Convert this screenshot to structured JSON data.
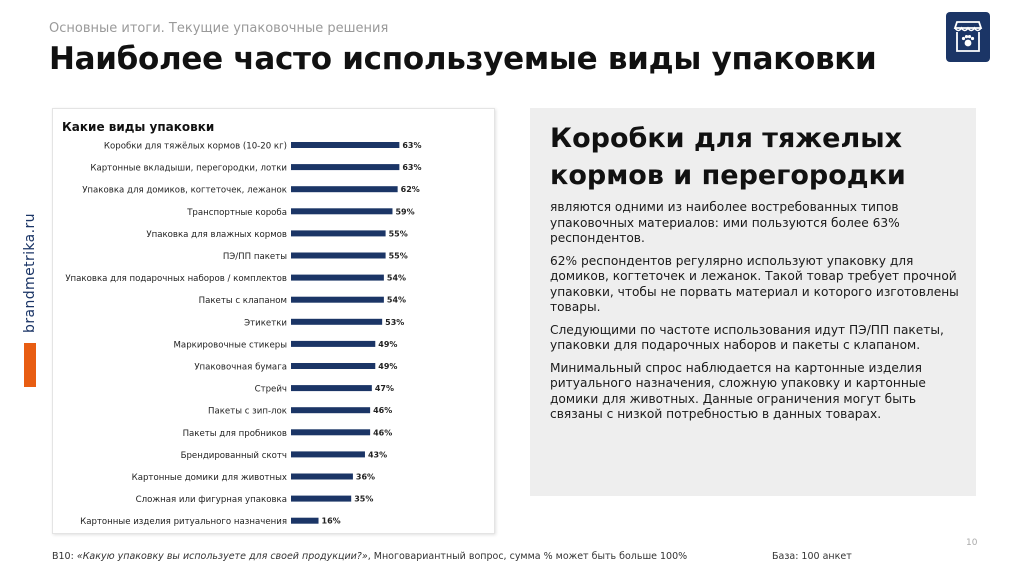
{
  "header": {
    "subtitle": "Основные итоги. Текущие упаковочные решения",
    "title": "Наиболее часто используемые виды упаковки"
  },
  "logo": {
    "icon": "storefront-paw-icon",
    "color": "#1b3566"
  },
  "side_brand": {
    "text": "brandmetrika.ru",
    "accent": "#e85d12"
  },
  "chart_data": {
    "type": "bar",
    "orientation": "horizontal",
    "title": "Какие виды упаковки",
    "categories": [
      "Коробки для тяжёлых кормов (10-20 кг)",
      "Картонные вкладыши, перегородки, лотки",
      "Упаковка для домиков, когтеточек, лежанок",
      "Транспортные короба",
      "Упаковка для влажных кормов",
      "ПЭ/ПП пакеты",
      "Упаковка для подарочных наборов / комплектов",
      "Пакеты с клапаном",
      "Этикетки",
      "Маркировочные стикеры",
      "Упаковочная бумага",
      "Стрейч",
      "Пакеты с зип-лок",
      "Пакеты для пробников",
      "Брендированный скотч",
      "Картонные домики для животных",
      "Сложная или фигурная упаковка",
      "Картонные изделия ритуального назначения"
    ],
    "values": [
      63,
      63,
      62,
      59,
      55,
      55,
      54,
      54,
      53,
      49,
      49,
      47,
      46,
      46,
      43,
      36,
      35,
      16
    ],
    "value_labels": [
      "63%",
      "63%",
      "62%",
      "59%",
      "55%",
      "55%",
      "54%",
      "54%",
      "53%",
      "49%",
      "49%",
      "47%",
      "46%",
      "46%",
      "43%",
      "36%",
      "35%",
      "16%"
    ],
    "unit": "%",
    "xlim": [
      0,
      100
    ],
    "bar_color": "#1b3566",
    "grid": false,
    "legend": "none"
  },
  "panel": {
    "heading": "Коробки для тяжелых кормов и перегородки",
    "paragraphs": [
      "являются одними из наиболее востребованных типов упаковочных материалов: ими пользуются более 63% респондентов.",
      "62% респондентов регулярно используют упаковку для домиков, когтеточек и лежанок. Такой товар требует прочной упаковки, чтобы не порвать материал и которого изготовлены товары.",
      "Следующими по частоте использования идут ПЭ/ПП пакеты, упаковки для подарочных наборов и пакеты с клапаном.",
      "Минимальный спрос наблюдается на картонные изделия ритуального назначения, сложную упаковку и картонные домики для животных. Данные ограничения могут быть связаны с низкой потребностью в данных товарах."
    ]
  },
  "footer": {
    "page_number": "10",
    "note_prefix": "B10: ",
    "note_question": "«Какую упаковку вы используете для своей продукции?»",
    "note_suffix": ", Многовариантный вопрос, сумма % может быть больше 100%",
    "base": "База: 100 анкет"
  }
}
